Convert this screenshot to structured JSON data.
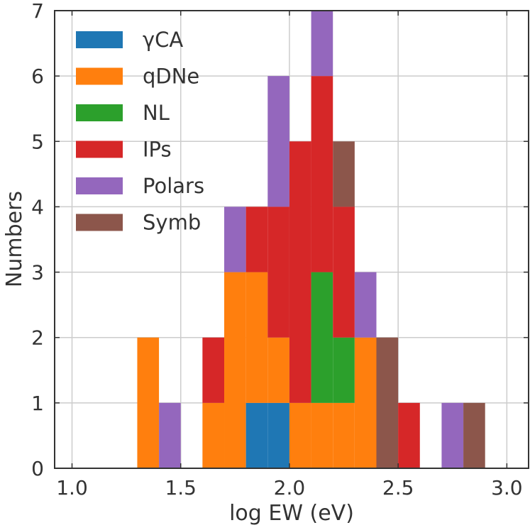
{
  "chart_data": {
    "type": "bar",
    "stacked": true,
    "title": "",
    "xlabel": "log EW (eV)",
    "ylabel": "Numbers",
    "xlim": [
      0.92,
      3.1
    ],
    "ylim": [
      0,
      7
    ],
    "xticks": [
      1.0,
      1.5,
      2.0,
      2.5,
      3.0
    ],
    "xtick_labels": [
      "1.0",
      "1.5",
      "2.0",
      "2.5",
      "3.0"
    ],
    "yticks": [
      0,
      1,
      2,
      3,
      4,
      5,
      6,
      7
    ],
    "ytick_labels": [
      "0",
      "1",
      "2",
      "3",
      "4",
      "5",
      "6",
      "7"
    ],
    "grid": true,
    "legend_position": "top-left",
    "bin_width": 0.1,
    "bin_starts": [
      1.3,
      1.4,
      1.6,
      1.7,
      1.8,
      1.9,
      2.0,
      2.1,
      2.2,
      2.3,
      2.4,
      2.5,
      2.7,
      2.8
    ],
    "series": [
      {
        "name": "γCA",
        "color": "#1f77b4",
        "values": [
          0,
          0,
          0,
          0,
          1,
          1,
          0,
          0,
          0,
          0,
          0,
          0,
          0,
          0
        ]
      },
      {
        "name": "qDNe",
        "color": "#ff7f0e",
        "values": [
          2,
          0,
          1,
          3,
          2,
          1,
          1,
          1,
          1,
          2,
          0,
          0,
          0,
          0
        ]
      },
      {
        "name": "NL",
        "color": "#2ca02c",
        "values": [
          0,
          0,
          0,
          0,
          0,
          0,
          0,
          2,
          1,
          0,
          0,
          0,
          0,
          0
        ]
      },
      {
        "name": "IPs",
        "color": "#d62728",
        "values": [
          0,
          0,
          1,
          0,
          1,
          2,
          4,
          3,
          2,
          0,
          0,
          1,
          0,
          0
        ]
      },
      {
        "name": "Polars",
        "color": "#9467bd",
        "values": [
          0,
          1,
          0,
          1,
          0,
          2,
          0,
          1,
          0,
          1,
          0,
          0,
          1,
          0
        ]
      },
      {
        "name": "Symb",
        "color": "#8c564b",
        "values": [
          0,
          0,
          0,
          0,
          0,
          0,
          0,
          0,
          1,
          0,
          2,
          0,
          0,
          1
        ]
      }
    ]
  }
}
